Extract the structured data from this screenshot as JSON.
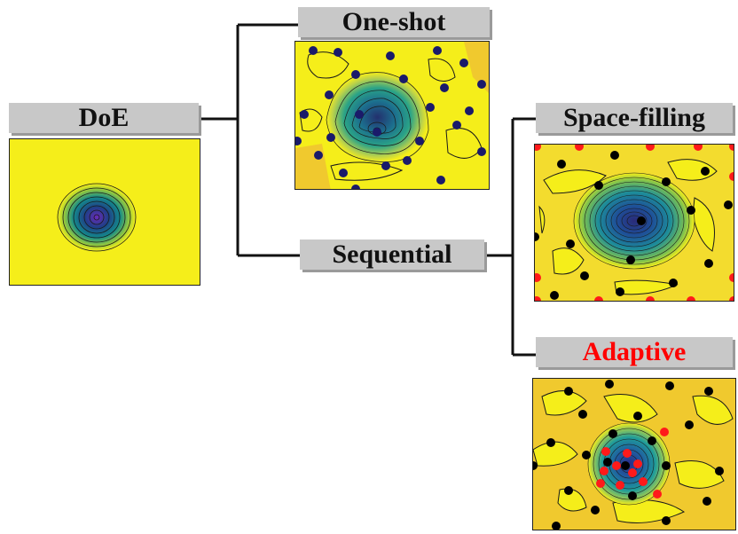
{
  "labels": {
    "doe": "DoE",
    "one_shot": "One-shot",
    "sequential": "Sequential",
    "space_filling": "Space-filling",
    "adaptive": "Adaptive"
  },
  "colors": {
    "label_background": "#c8c8c8",
    "adaptive_text": "#ff0000",
    "field_yellow": "#f5ee1a",
    "field_gold": "#f0c92e",
    "sample_black": "#000000",
    "sample_navy": "#1a1a6a",
    "sample_red": "#ff1a1a"
  },
  "icons": [
    "contour-plot-icon"
  ]
}
